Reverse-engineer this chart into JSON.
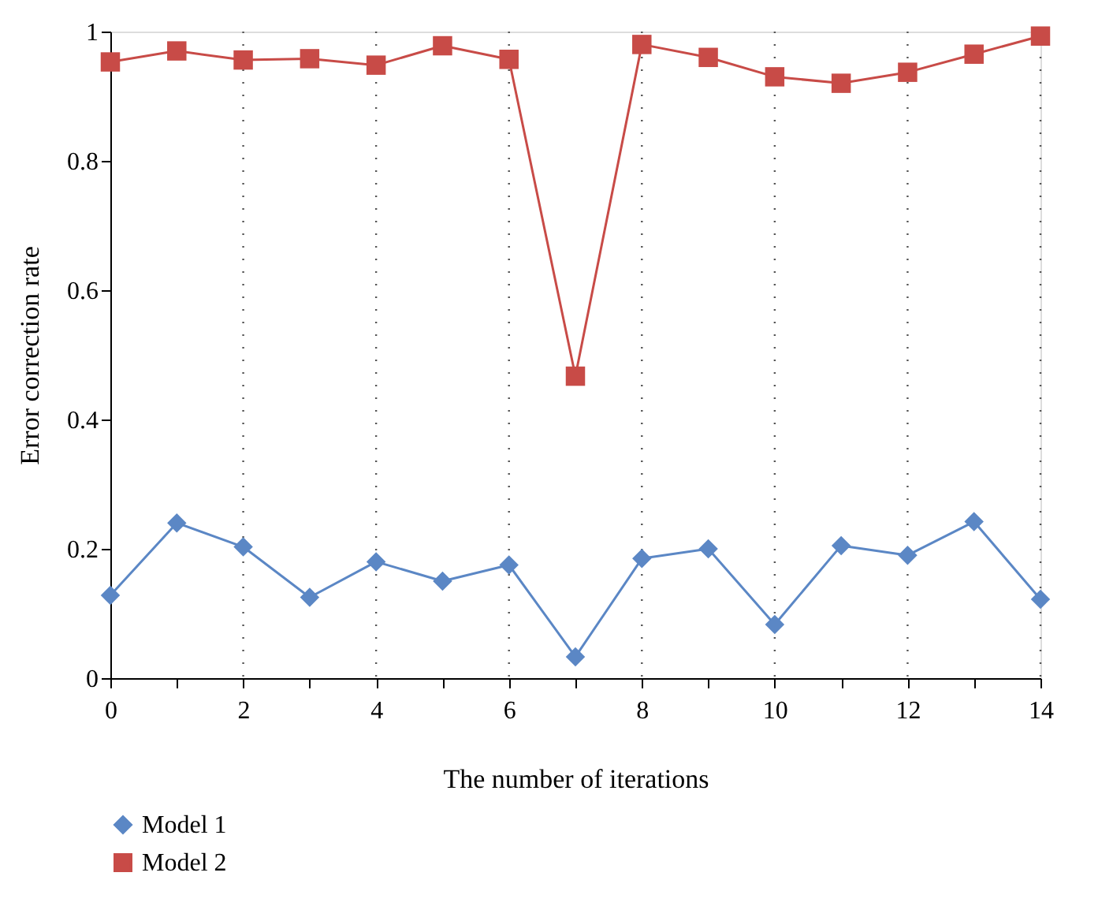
{
  "chart_data": {
    "type": "line",
    "xlabel": "The number of iterations",
    "ylabel": "Error correction rate",
    "x": [
      0,
      1,
      2,
      3,
      4,
      5,
      6,
      7,
      8,
      9,
      10,
      11,
      12,
      13,
      14
    ],
    "series": [
      {
        "name": "Model 1",
        "color": "#5b87c5",
        "marker": "diamond",
        "values": [
          0.128,
          0.24,
          0.203,
          0.125,
          0.18,
          0.15,
          0.175,
          0.033,
          0.185,
          0.2,
          0.083,
          0.205,
          0.19,
          0.242,
          0.122
        ]
      },
      {
        "name": "Model 2",
        "color": "#c84b47",
        "marker": "square",
        "values": [
          0.953,
          0.97,
          0.956,
          0.958,
          0.948,
          0.978,
          0.957,
          0.467,
          0.98,
          0.96,
          0.93,
          0.92,
          0.937,
          0.965,
          0.993
        ]
      }
    ],
    "xlim": [
      0,
      14
    ],
    "xticks": [
      0,
      {
        "value": 1,
        "label": null
      },
      2,
      {
        "value": 3,
        "label": null
      },
      4,
      {
        "value": 5,
        "label": null
      },
      6,
      {
        "value": 7,
        "label": null
      },
      8,
      {
        "value": 9,
        "label": null
      },
      10,
      {
        "value": 11,
        "label": null
      },
      12,
      {
        "value": 13,
        "label": null
      },
      14
    ],
    "ylim": [
      0,
      1
    ],
    "yticks": [
      0,
      {
        "value": 0.2,
        "label": "0.2"
      },
      {
        "value": 0.4,
        "label": "0.4"
      },
      {
        "value": 0.6,
        "label": "0.6"
      },
      {
        "value": 0.8,
        "label": "0.8"
      },
      {
        "value": 1,
        "label": "1"
      }
    ],
    "grid": "x",
    "line_style": "solid",
    "legend": "bottom left"
  }
}
